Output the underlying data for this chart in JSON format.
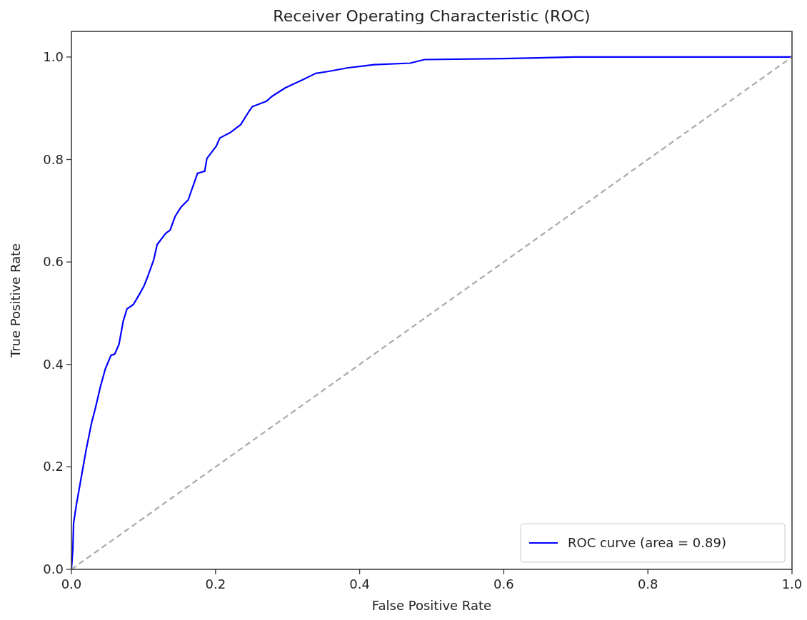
{
  "chart_data": {
    "type": "line",
    "title": "Receiver Operating Characteristic (ROC)",
    "xlabel": "False Positive Rate",
    "ylabel": "True Positive Rate",
    "xlim": [
      0,
      1
    ],
    "ylim": [
      0,
      1.05
    ],
    "xticks": [
      {
        "value": 0,
        "label": "0.0"
      },
      0.2,
      0.4,
      0.6,
      0.8,
      {
        "value": 1,
        "label": "1.0"
      }
    ],
    "yticks": [
      {
        "value": 0,
        "label": "0.0"
      },
      0.2,
      0.4,
      0.6,
      0.8,
      {
        "value": 1,
        "label": "1.0"
      }
    ],
    "legend": "bottom right",
    "grid": false,
    "series": [
      {
        "name": "ROC curve (area = 0.89)",
        "color": "#0000ff",
        "line_style": "solid",
        "x": [
          0,
          0.002,
          0.003,
          0.007,
          0.015,
          0.02,
          0.028,
          0.033,
          0.04,
          0.047,
          0.055,
          0.06,
          0.066,
          0.072,
          0.077,
          0.086,
          0.094,
          0.101,
          0.106,
          0.114,
          0.119,
          0.131,
          0.137,
          0.144,
          0.152,
          0.162,
          0.175,
          0.185,
          0.188,
          0.201,
          0.206,
          0.221,
          0.235,
          0.246,
          0.251,
          0.271,
          0.278,
          0.297,
          0.32,
          0.339,
          0.357,
          0.384,
          0.42,
          0.47,
          0.49,
          0.6,
          0.7,
          1.0
        ],
        "values": [
          0,
          0.04,
          0.09,
          0.127,
          0.19,
          0.23,
          0.286,
          0.313,
          0.355,
          0.391,
          0.418,
          0.42,
          0.439,
          0.485,
          0.508,
          0.517,
          0.536,
          0.554,
          0.572,
          0.603,
          0.634,
          0.656,
          0.662,
          0.689,
          0.707,
          0.721,
          0.773,
          0.777,
          0.802,
          0.826,
          0.842,
          0.853,
          0.868,
          0.893,
          0.903,
          0.914,
          0.923,
          0.94,
          0.955,
          0.968,
          0.972,
          0.979,
          0.985,
          0.988,
          0.995,
          0.997,
          1.0,
          1.0
        ]
      },
      {
        "color": "#aaaaaa",
        "line_style": "dashed",
        "x": [
          0,
          1
        ],
        "values": [
          0,
          1
        ]
      }
    ]
  }
}
